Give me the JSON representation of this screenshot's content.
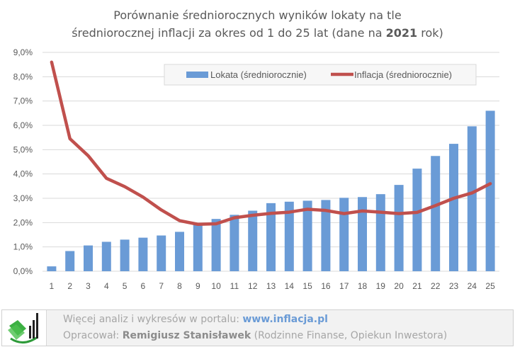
{
  "chart_data": {
    "type": "bar",
    "title_line1": "Porównanie średniorocznych wyników lokaty na tle",
    "title_line2_pre": "średniorocznej inflacji za okres od 1 do 25 lat (dane na ",
    "title_year": "2021",
    "title_line2_post": " rok)",
    "categories": [
      "1",
      "2",
      "3",
      "4",
      "5",
      "6",
      "7",
      "8",
      "9",
      "10",
      "11",
      "12",
      "13",
      "14",
      "15",
      "16",
      "17",
      "18",
      "19",
      "20",
      "21",
      "22",
      "23",
      "24",
      "25"
    ],
    "series": [
      {
        "name": "Lokata (średniorocznie)",
        "type": "bar",
        "color": "#6a9bd6",
        "values": [
          0.2,
          0.83,
          1.06,
          1.21,
          1.3,
          1.38,
          1.47,
          1.62,
          1.93,
          2.15,
          2.32,
          2.49,
          2.8,
          2.86,
          2.9,
          2.93,
          3.02,
          3.05,
          3.17,
          3.55,
          4.22,
          4.74,
          5.24,
          5.96,
          6.6
        ]
      },
      {
        "name": "Inflacja (średniorocznie)",
        "type": "line",
        "color": "#c0504d",
        "values": [
          8.6,
          5.45,
          4.75,
          3.82,
          3.48,
          3.05,
          2.52,
          2.08,
          1.93,
          1.95,
          2.2,
          2.3,
          2.38,
          2.43,
          2.55,
          2.5,
          2.37,
          2.48,
          2.43,
          2.37,
          2.42,
          2.7,
          3.0,
          3.22,
          3.6
        ]
      }
    ],
    "yticks": [
      "0,0%",
      "1,0%",
      "2,0%",
      "3,0%",
      "4,0%",
      "5,0%",
      "6,0%",
      "7,0%",
      "8,0%",
      "9,0%"
    ],
    "ylim": [
      0,
      9
    ],
    "grid": true,
    "legend": "top-right"
  },
  "footer": {
    "line1_text": "Więcej analiz i wykresów w portalu: ",
    "line1_link": "www.inflacja.pl",
    "line2_pre": "Opracował: ",
    "line2_author": "Remigiusz Stanisławek",
    "line2_post": " (Rodzinne Finanse, Opiekun Inwestora)"
  }
}
